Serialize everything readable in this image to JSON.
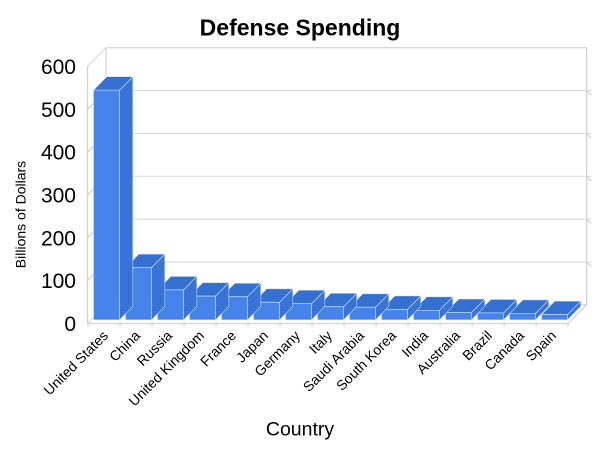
{
  "chart_data": {
    "type": "bar",
    "style": "3d-column",
    "title": "Defense Spending",
    "xlabel": "Country",
    "ylabel": "Billions of Dollars",
    "categories": [
      "United States",
      "China",
      "Russia",
      "United Kingdom",
      "France",
      "Japan",
      "Germany",
      "Italy",
      "Saudi Arabia",
      "South Korea",
      "India",
      "Australia",
      "Brazil",
      "Canada",
      "Spain"
    ],
    "values": [
      535.9,
      121.9,
      70.0,
      55.4,
      54.0,
      41.1,
      37.8,
      30.6,
      29.5,
      24.6,
      22.4,
      17.2,
      16.2,
      15.1,
      12.3
    ],
    "ylim": [
      0,
      600
    ],
    "yticks": [
      0,
      100,
      200,
      300,
      400,
      500,
      600
    ],
    "grid": true,
    "legend": false,
    "colors": {
      "bar_front": "#4583EB",
      "bar_top": "#3470D0",
      "bar_side": "#3A73D6",
      "bar_edge": "rgba(235,243,255,0.65)",
      "grid_line": "#DCDCDC",
      "frame_line": "#D2D2D2",
      "tick_mark": "#C8C8C8",
      "text": "#000000",
      "background": "#FFFFFF"
    }
  }
}
